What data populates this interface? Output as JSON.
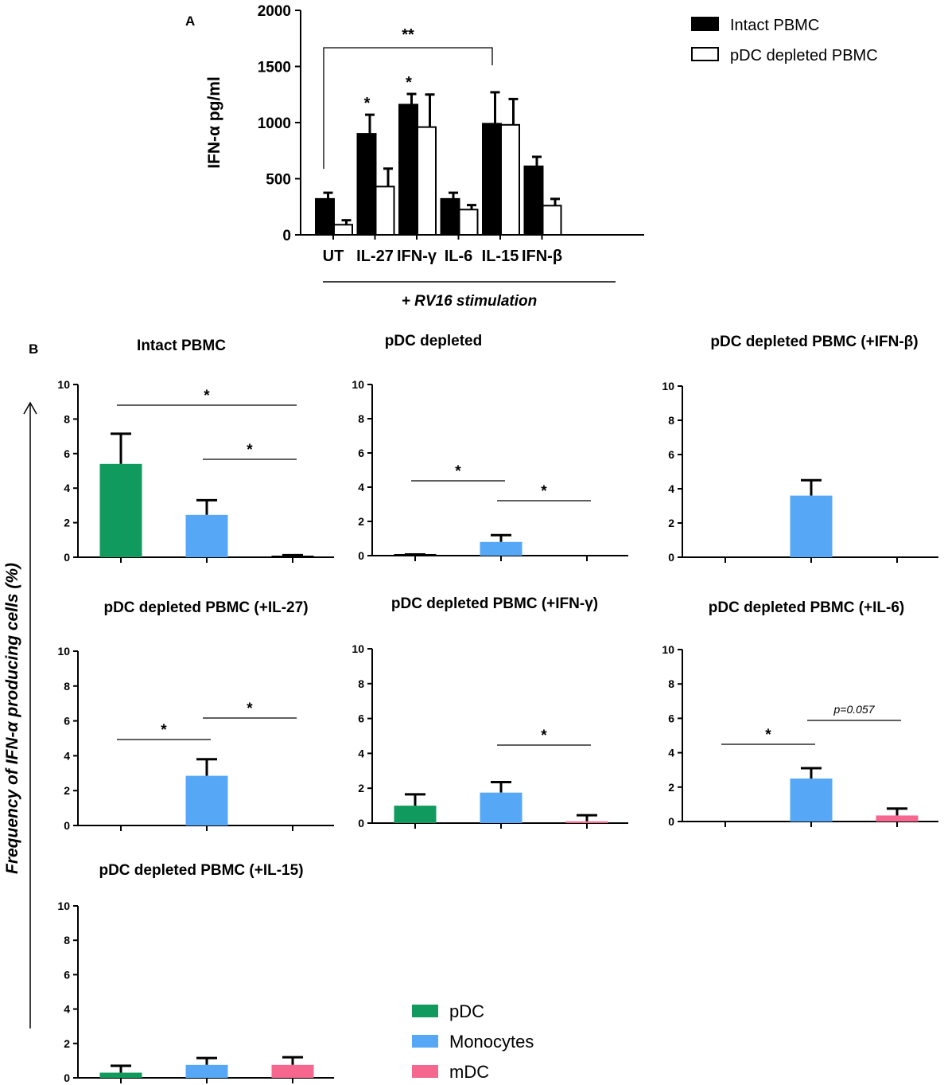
{
  "panel_a_letter": "A",
  "panel_b_letter": "B",
  "b_ylabel": "Frequency of IFN-α producing cells (%)",
  "chart_data": [
    {
      "type": "bar",
      "id": "A",
      "title": "",
      "xlabel": "+ RV16 stimulation",
      "ylabel": "IFN-α pg/ml",
      "ylim": [
        0,
        2000
      ],
      "yticks": [
        "0",
        "500",
        "1000",
        "1500",
        "2000"
      ],
      "categories": [
        "UT",
        "IL-27",
        "IFN-γ",
        "IL-6",
        "IL-15",
        "IFN-β"
      ],
      "series": [
        {
          "name": "Intact PBMC",
          "color": "#000000",
          "values": [
            320,
            900,
            1160,
            320,
            990,
            610
          ],
          "errors": [
            55,
            170,
            95,
            55,
            280,
            85
          ]
        },
        {
          "name": "pDC depleted PBMC",
          "color": "#ffffff",
          "values": [
            90,
            430,
            960,
            225,
            980,
            260
          ],
          "errors": [
            40,
            160,
            290,
            40,
            230,
            60
          ]
        }
      ],
      "annotations": [
        {
          "text": "*",
          "category": "IL-27"
        },
        {
          "text": "*",
          "category": "IFN-γ"
        },
        {
          "text": "**",
          "bracket": [
            "UT",
            "IL-15"
          ]
        }
      ]
    },
    {
      "type": "bar",
      "id": "B1",
      "title": "Intact PBMC",
      "ylim": [
        0,
        10
      ],
      "yticks": [
        "0",
        "2",
        "4",
        "6",
        "8",
        "10"
      ],
      "categories": [
        "pDC",
        "Monocytes",
        "mDC"
      ],
      "values": [
        5.4,
        2.45,
        0.07
      ],
      "errors": [
        1.75,
        0.85,
        0.05
      ],
      "annotations": [
        {
          "text": "*",
          "from": "pDC",
          "to": "mDC"
        },
        {
          "text": "*",
          "from": "Monocytes",
          "to": "mDC"
        }
      ]
    },
    {
      "type": "bar",
      "id": "B2",
      "title": "pDC depleted",
      "ylim": [
        0,
        10
      ],
      "yticks": [
        "0",
        "2",
        "4",
        "6",
        "8",
        "10"
      ],
      "categories": [
        "pDC",
        "Monocytes",
        "mDC"
      ],
      "values": [
        0.05,
        0.8,
        0.0
      ],
      "errors": [
        0.02,
        0.4,
        0.0
      ],
      "annotations": [
        {
          "text": "*",
          "from": "pDC",
          "to": "Monocytes"
        },
        {
          "text": "*",
          "from": "Monocytes",
          "to": "mDC"
        }
      ]
    },
    {
      "type": "bar",
      "id": "B3",
      "title": "pDC depleted PBMC (+IFN-β)",
      "ylim": [
        0,
        10
      ],
      "yticks": [
        "0",
        "2",
        "4",
        "6",
        "8",
        "10"
      ],
      "categories": [
        "pDC",
        "Monocytes",
        "mDC"
      ],
      "values": [
        0.0,
        3.6,
        0.0
      ],
      "errors": [
        0.0,
        0.9,
        0.0
      ],
      "annotations": []
    },
    {
      "type": "bar",
      "id": "B4",
      "title": "pDC depleted PBMC (+IL-27)",
      "ylim": [
        0,
        10
      ],
      "yticks": [
        "0",
        "2",
        "4",
        "6",
        "8",
        "10"
      ],
      "categories": [
        "pDC",
        "Monocytes",
        "mDC"
      ],
      "values": [
        0.0,
        2.85,
        0.0
      ],
      "errors": [
        0.0,
        0.95,
        0.0
      ],
      "annotations": [
        {
          "text": "*",
          "from": "pDC",
          "to": "Monocytes"
        },
        {
          "text": "*",
          "from": "Monocytes",
          "to": "mDC"
        }
      ]
    },
    {
      "type": "bar",
      "id": "B5",
      "title": "pDC depleted PBMC (+IFN-γ)",
      "ylim": [
        0,
        10
      ],
      "yticks": [
        "0",
        "2",
        "4",
        "6",
        "8",
        "10"
      ],
      "categories": [
        "pDC",
        "Monocytes",
        "mDC"
      ],
      "values": [
        1.0,
        1.75,
        0.1
      ],
      "errors": [
        0.65,
        0.6,
        0.35
      ],
      "annotations": [
        {
          "text": "*",
          "from": "Monocytes",
          "to": "mDC"
        }
      ]
    },
    {
      "type": "bar",
      "id": "B6",
      "title": "pDC depleted PBMC (+IL-6)",
      "ylim": [
        0,
        10
      ],
      "yticks": [
        "0",
        "2",
        "4",
        "6",
        "8",
        "10"
      ],
      "categories": [
        "pDC",
        "Monocytes",
        "mDC"
      ],
      "values": [
        0.0,
        2.5,
        0.35
      ],
      "errors": [
        0.0,
        0.6,
        0.4
      ],
      "annotations": [
        {
          "text": "*",
          "from": "pDC",
          "to": "Monocytes"
        },
        {
          "text": "p=0.057",
          "from": "Monocytes",
          "to": "mDC",
          "italic": true
        }
      ]
    },
    {
      "type": "bar",
      "id": "B7",
      "title": "pDC depleted PBMC (+IL-15)",
      "ylim": [
        0,
        10
      ],
      "yticks": [
        "0",
        "2",
        "4",
        "6",
        "8",
        "10"
      ],
      "categories": [
        "pDC",
        "Monocytes",
        "mDC"
      ],
      "values": [
        0.3,
        0.75,
        0.75
      ],
      "errors": [
        0.4,
        0.4,
        0.45
      ],
      "annotations": []
    }
  ],
  "b_legend": [
    {
      "label": "pDC",
      "color": "#119a5d"
    },
    {
      "label": "Monocytes",
      "color": "#56a8f7"
    },
    {
      "label": "mDC",
      "color": "#f6678f"
    }
  ]
}
